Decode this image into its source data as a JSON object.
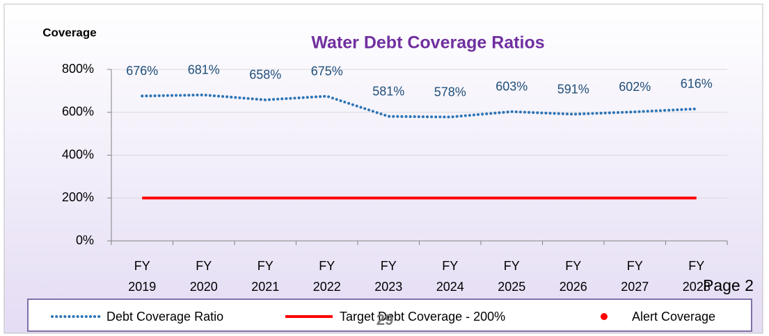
{
  "chart_data": {
    "type": "line",
    "title": "Water Debt Coverage Ratios",
    "y_label": "Coverage",
    "categories": [
      "FY 2019",
      "FY 2020",
      "FY 2021",
      "FY 2022",
      "FY 2023",
      "FY 2024",
      "FY 2025",
      "FY 2026",
      "FY 2027",
      "FY 2028"
    ],
    "series": [
      {
        "name": "Debt Coverage Ratio",
        "color": "#2e75b6",
        "style": "dotted",
        "values": [
          676,
          681,
          658,
          675,
          581,
          578,
          603,
          591,
          602,
          616
        ],
        "value_labels": [
          "676%",
          "681%",
          "658%",
          "675%",
          "581%",
          "578%",
          "603%",
          "591%",
          "602%",
          "616%"
        ]
      },
      {
        "name": "Target Debt Coverage - 200%",
        "color": "#ff0000",
        "style": "solid",
        "values": [
          200,
          200,
          200,
          200,
          200,
          200,
          200,
          200,
          200,
          200
        ]
      },
      {
        "name": "Alert Coverage",
        "color": "#ff0000",
        "style": "marker",
        "values": [
          null,
          null,
          null,
          null,
          null,
          null,
          null,
          null,
          null,
          null
        ]
      }
    ],
    "ylim": [
      0,
      800
    ],
    "yticks": [
      {
        "value": 0,
        "label": "0%"
      },
      {
        "value": 200,
        "label": "200%"
      },
      {
        "value": 400,
        "label": "400%"
      },
      {
        "value": 600,
        "label": "600%"
      },
      {
        "value": 800,
        "label": "800%"
      }
    ],
    "grid": true,
    "legend": "bottom",
    "page_label": "Page 2",
    "page_number": "29"
  }
}
